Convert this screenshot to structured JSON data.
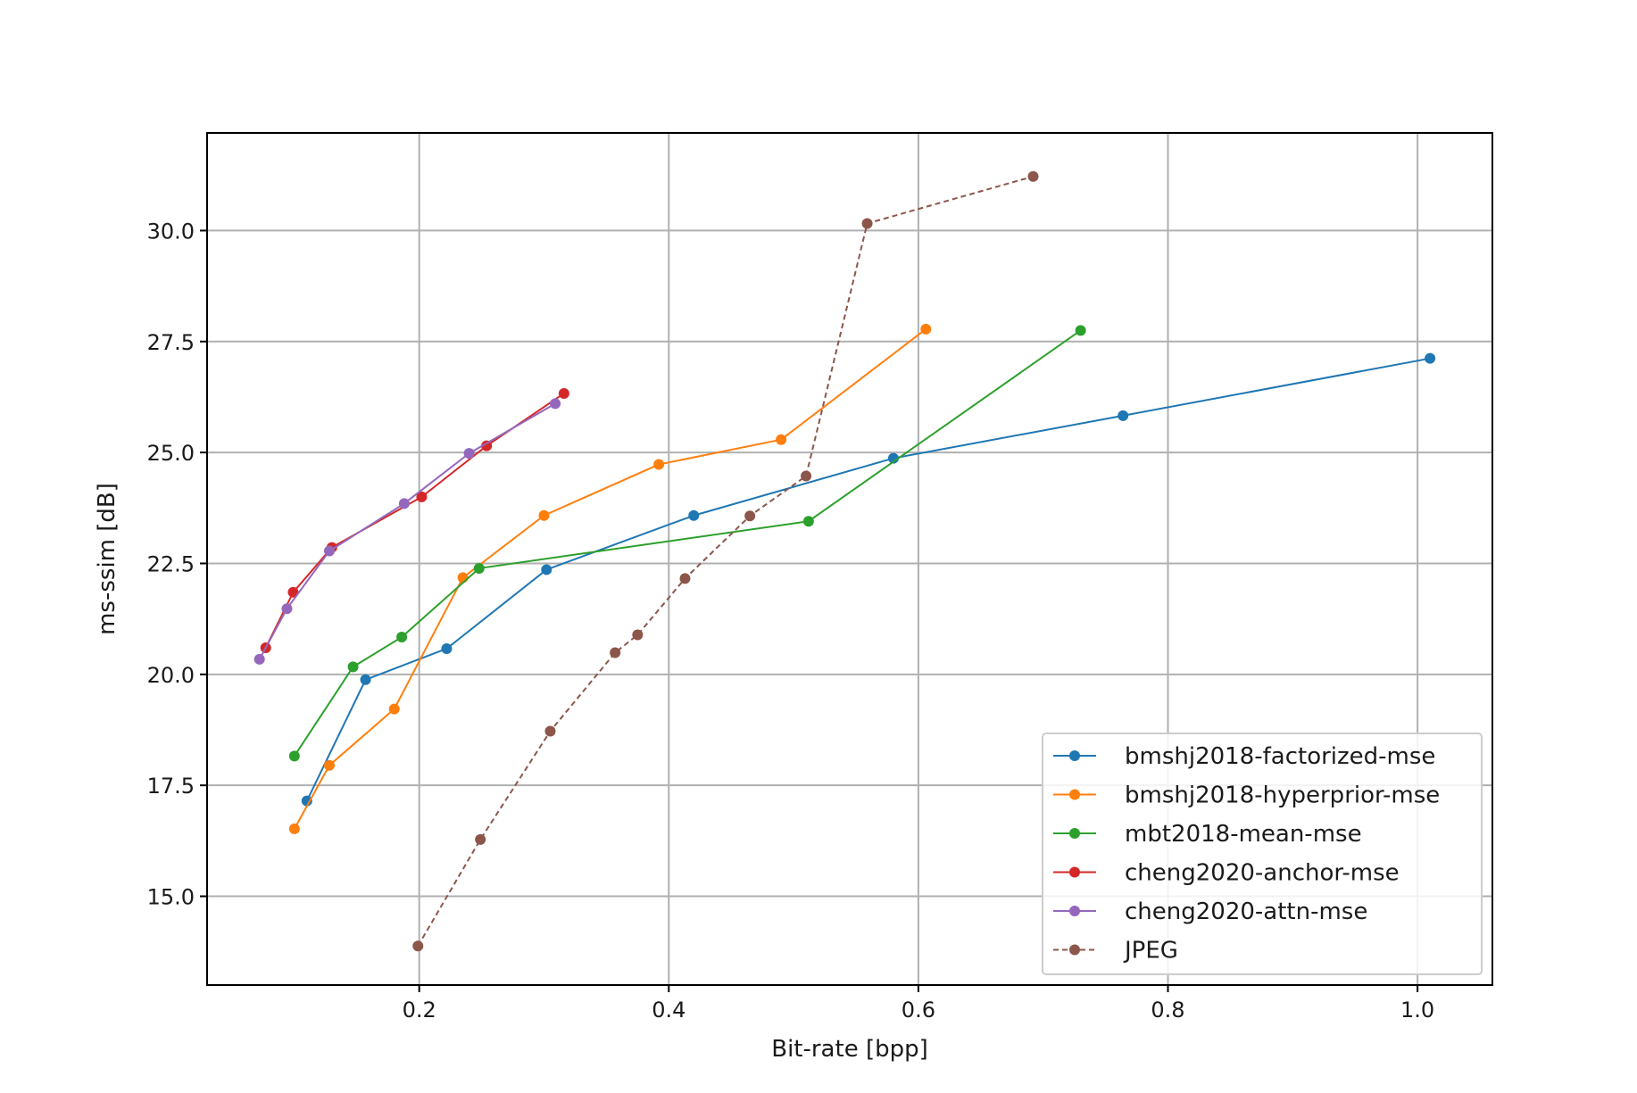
{
  "chart_data": {
    "type": "line",
    "title": "",
    "xlabel": "Bit-rate [bpp]",
    "ylabel": "ms-ssim [dB]",
    "xlim": [
      0.03,
      1.06
    ],
    "ylim": [
      13.0,
      32.2
    ],
    "xticks": [
      0.2,
      0.4,
      0.6,
      0.8,
      1.0
    ],
    "xtick_labels": [
      "0.2",
      "0.4",
      "0.6",
      "0.8",
      "1.0"
    ],
    "yticks": [
      15.0,
      17.5,
      20.0,
      22.5,
      25.0,
      27.5,
      30.0
    ],
    "ytick_labels": [
      "15.0",
      "17.5",
      "20.0",
      "22.5",
      "25.0",
      "27.5",
      "30.0"
    ],
    "grid": true,
    "legend_position": "lower-right",
    "series": [
      {
        "name": "bmshj2018-factorized-mse",
        "color": "#1f77b4",
        "linestyle": "solid",
        "x": [
          0.11,
          0.157,
          0.222,
          0.302,
          0.42,
          0.58,
          0.764,
          1.01
        ],
        "y": [
          17.15,
          19.88,
          20.58,
          22.36,
          23.58,
          24.87,
          25.83,
          27.12
        ]
      },
      {
        "name": "bmshj2018-hyperprior-mse",
        "color": "#ff7f0e",
        "linestyle": "solid",
        "x": [
          0.1,
          0.128,
          0.18,
          0.235,
          0.3,
          0.392,
          0.49,
          0.606
        ],
        "y": [
          16.52,
          17.95,
          19.22,
          22.18,
          23.58,
          24.73,
          25.29,
          27.78
        ]
      },
      {
        "name": "mbt2018-mean-mse",
        "color": "#2ca02c",
        "linestyle": "solid",
        "x": [
          0.1,
          0.147,
          0.186,
          0.248,
          0.512,
          0.73
        ],
        "y": [
          18.16,
          20.17,
          20.84,
          22.39,
          23.45,
          27.75
        ]
      },
      {
        "name": "cheng2020-anchor-mse",
        "color": "#d62728",
        "linestyle": "solid",
        "x": [
          0.077,
          0.099,
          0.13,
          0.202,
          0.254,
          0.316
        ],
        "y": [
          20.6,
          21.85,
          22.86,
          24.0,
          25.15,
          26.33
        ]
      },
      {
        "name": "cheng2020-attn-mse",
        "color": "#9467bd",
        "linestyle": "solid",
        "x": [
          0.072,
          0.094,
          0.128,
          0.188,
          0.24,
          0.309
        ],
        "y": [
          20.34,
          21.48,
          22.78,
          23.85,
          24.98,
          26.1
        ]
      },
      {
        "name": "JPEG",
        "color": "#8c564b",
        "linestyle": "dashed",
        "x": [
          0.199,
          0.249,
          0.305,
          0.357,
          0.375,
          0.413,
          0.465,
          0.51,
          0.559,
          0.692
        ],
        "y": [
          13.88,
          16.28,
          18.72,
          20.49,
          20.89,
          22.16,
          23.57,
          24.47,
          30.16,
          31.22
        ]
      }
    ]
  }
}
